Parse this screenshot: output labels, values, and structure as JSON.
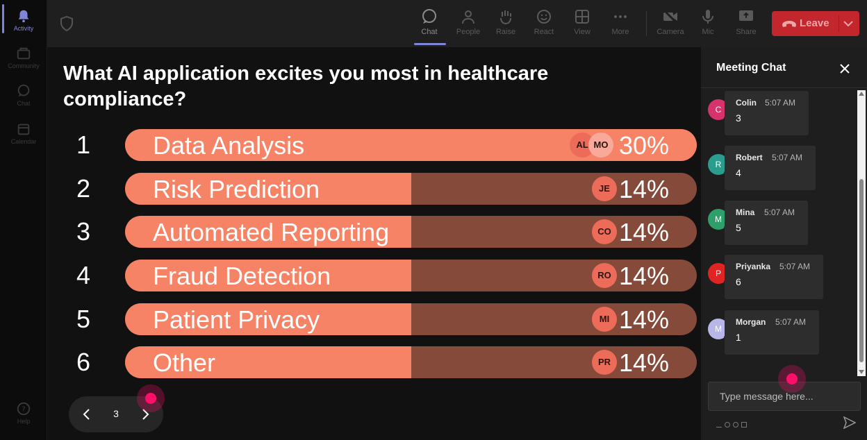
{
  "rail": {
    "items": [
      {
        "label": "Activity",
        "icon": "bell-icon",
        "active": true
      },
      {
        "label": "Community",
        "icon": "community-icon"
      },
      {
        "label": "Chat",
        "icon": "chat-icon"
      },
      {
        "label": "Calendar",
        "icon": "calendar-icon"
      }
    ],
    "help": {
      "label": "Help",
      "icon": "help-icon"
    }
  },
  "topbar": {
    "buttons": [
      {
        "label": "Chat",
        "icon": "chat-bubble-icon",
        "active": true
      },
      {
        "label": "People",
        "icon": "people-icon"
      },
      {
        "label": "Raise",
        "icon": "raise-hand-icon"
      },
      {
        "label": "React",
        "icon": "smiley-icon"
      },
      {
        "label": "View",
        "icon": "grid-view-icon"
      },
      {
        "label": "More",
        "icon": "more-icon"
      },
      {
        "label": "Camera",
        "icon": "camera-off-icon"
      },
      {
        "label": "Mic",
        "icon": "mic-icon"
      },
      {
        "label": "Share",
        "icon": "share-icon"
      }
    ],
    "leave_label": "Leave"
  },
  "poll": {
    "question": "What AI application excites you most in healthcare compliance?",
    "options": [
      {
        "rank": "1",
        "label": "Data Analysis",
        "percent_text": "30%",
        "percent": 30,
        "voters": [
          "AL",
          "MO"
        ]
      },
      {
        "rank": "2",
        "label": "Risk Prediction",
        "percent_text": "14%",
        "percent": 14,
        "voters": [
          "JE"
        ]
      },
      {
        "rank": "3",
        "label": "Automated Reporting",
        "percent_text": "14%",
        "percent": 14,
        "voters": [
          "CO"
        ]
      },
      {
        "rank": "4",
        "label": "Fraud Detection",
        "percent_text": "14%",
        "percent": 14,
        "voters": [
          "RO"
        ]
      },
      {
        "rank": "5",
        "label": "Patient Privacy",
        "percent_text": "14%",
        "percent": 14,
        "voters": [
          "MI"
        ]
      },
      {
        "rank": "6",
        "label": "Other",
        "percent_text": "14%",
        "percent": 14,
        "voters": [
          "PR"
        ]
      }
    ],
    "page": "3"
  },
  "chat": {
    "title": "Meeting Chat",
    "messages": [
      {
        "initial": "C",
        "name": "Colin",
        "time": "5:07 AM",
        "text": "3",
        "color": "#d6336c"
      },
      {
        "initial": "R",
        "name": "Robert",
        "time": "5:07 AM",
        "text": "4",
        "color": "#2a9d8f"
      },
      {
        "initial": "M",
        "name": "Mina",
        "time": "5:07 AM",
        "text": "5",
        "color": "#2f9e6b"
      },
      {
        "initial": "P",
        "name": "Priyanka",
        "time": "5:07 AM",
        "text": "6",
        "color": "#e02424"
      },
      {
        "initial": "M",
        "name": "Morgan",
        "time": "5:07 AM",
        "text": "1",
        "color": "#b8b6e8"
      }
    ],
    "input_placeholder": "Type message here..."
  },
  "colors": {
    "bar_fill": "#f68366",
    "bar_track": "#864a3b",
    "leave": "#c4262e",
    "accent": "#7f86d8",
    "cursor": "#ff0f6b"
  }
}
